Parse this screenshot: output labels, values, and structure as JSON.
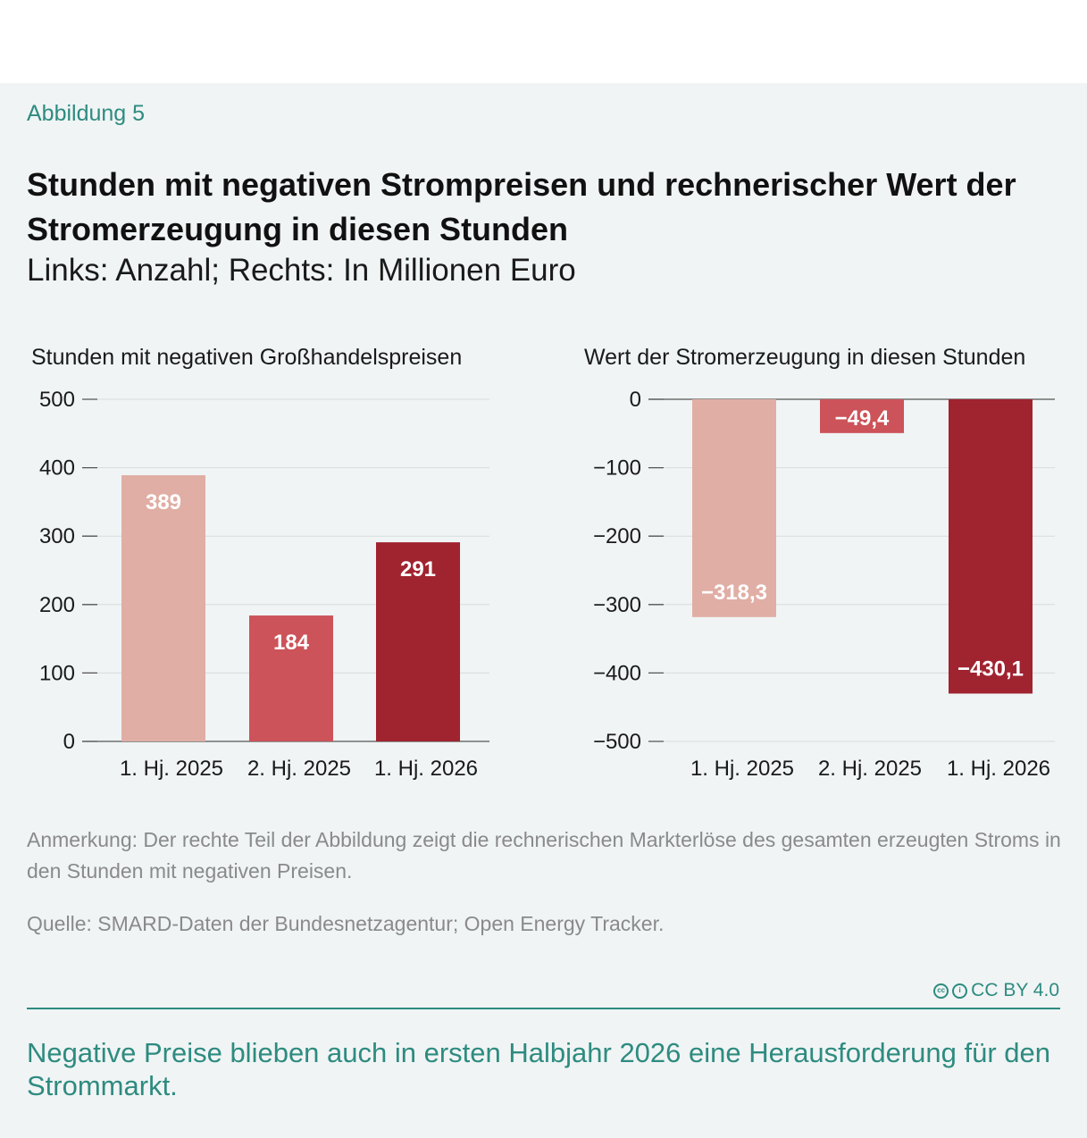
{
  "figure_label": "Abbildung 5",
  "title": "Stunden mit negativen Strompreisen und rechnerischer Wert der Stromerzeugung in diesen Stunden",
  "subtitle": "Links: Anzahl; Rechts: In Millionen Euro",
  "note": "Anmerkung: Der rechte Teil der Abbildung zeigt die rechnerischen Markterlöse des gesamten erzeugten Stroms in den Stunden mit negativen Preisen.",
  "source": "Quelle: SMARD-Daten der Bundesnetzagentur; Open Energy Tracker.",
  "license": "CC BY 4.0",
  "caption": "Negative Preise blieben auch in ersten Halbjahr 2026 eine Herausforderung für den Strommarkt.",
  "colors": {
    "bar1": "#e0aea5",
    "bar2": "#cc5359",
    "bar3": "#a02330",
    "accent": "#2e8b80"
  },
  "chart_data": [
    {
      "type": "bar",
      "title": "Stunden mit negativen Großhandelspreisen",
      "categories": [
        "1. Hj. 2025",
        "2. Hj. 2025",
        "1. Hj. 2026"
      ],
      "values": [
        389,
        184,
        291
      ],
      "value_labels": [
        "389",
        "184",
        "291"
      ],
      "ylim": [
        0,
        500
      ],
      "ticks": [
        0,
        100,
        200,
        300,
        400,
        500
      ],
      "tick_labels": [
        "0",
        "100",
        "200",
        "300",
        "400",
        "500"
      ],
      "grid": true
    },
    {
      "type": "bar",
      "title": "Wert der Stromerzeugung in diesen Stunden",
      "categories": [
        "1. Hj. 2025",
        "2. Hj. 2025",
        "1. Hj. 2026"
      ],
      "values": [
        -318.3,
        -49.4,
        -430.1
      ],
      "value_labels": [
        "−318,3",
        "−49,4",
        "−430,1"
      ],
      "ylim": [
        -500,
        0
      ],
      "ticks": [
        0,
        -100,
        -200,
        -300,
        -400,
        -500
      ],
      "tick_labels": [
        "0",
        "−100",
        "−200",
        "−300",
        "−400",
        "−500"
      ],
      "grid": true
    }
  ]
}
